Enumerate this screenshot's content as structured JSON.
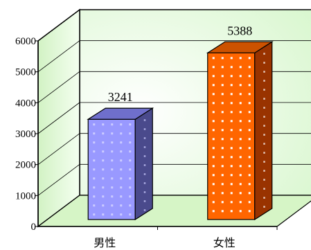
{
  "chart_data": {
    "type": "bar",
    "categories": [
      "男性",
      "女性"
    ],
    "values": [
      3241,
      5388
    ],
    "ylim": [
      0,
      6000
    ],
    "yticks": [
      0,
      1000,
      2000,
      3000,
      4000,
      5000,
      6000
    ],
    "grid": true,
    "three_d": true,
    "bar_colors": [
      "#9999ff",
      "#ff6600"
    ],
    "bar_side_colors": [
      "#4a4a8c",
      "#993300"
    ],
    "bar_top_colors": [
      "#6f6fcc",
      "#cc5200"
    ],
    "dot_colors": [
      "#ccccff",
      "#ffffff"
    ],
    "wall_color": "#e9fbe2",
    "floor_color": "#d6f5c6"
  }
}
